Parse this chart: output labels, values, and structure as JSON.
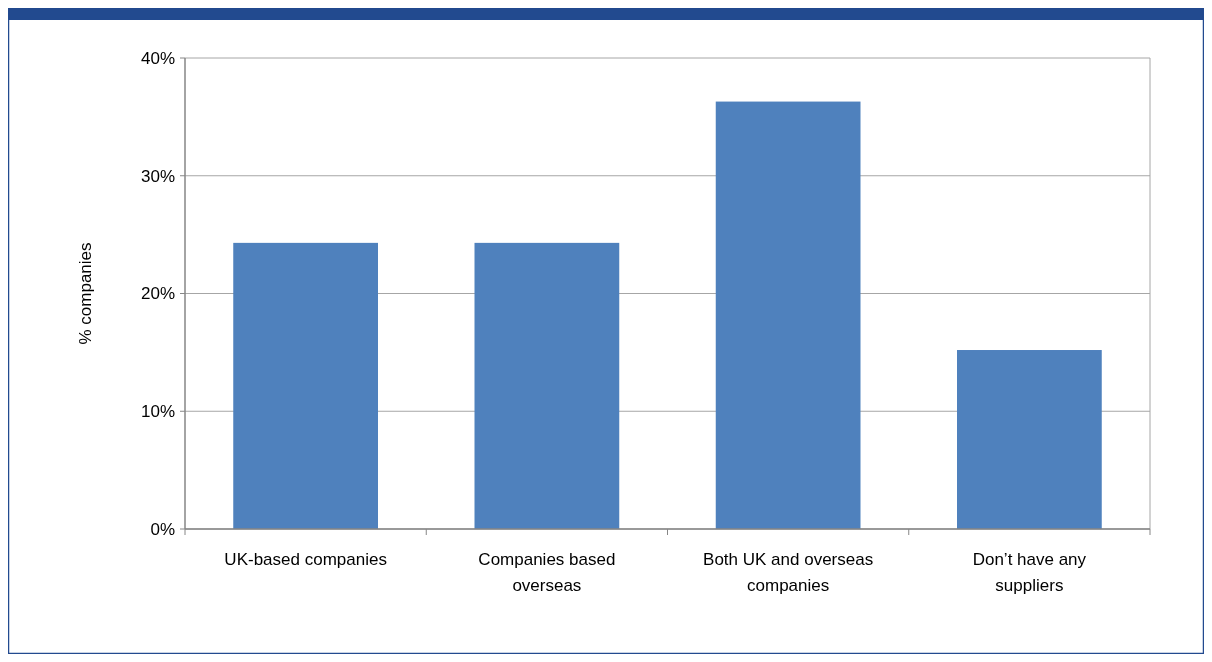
{
  "chart_data": {
    "type": "bar",
    "ylabel": "% companies",
    "categories": [
      "UK-based companies",
      "Companies based overseas",
      "Both UK and overseas companies",
      "Don’t have any suppliers"
    ],
    "values": [
      24.3,
      24.3,
      36.3,
      15.2
    ],
    "color": "#4f81bd",
    "ylim": [
      0,
      40
    ],
    "yticks": [
      {
        "value": 0,
        "label": "0%"
      },
      {
        "value": 10,
        "label": "10%"
      },
      {
        "value": 20,
        "label": "20%"
      },
      {
        "value": 30,
        "label": "30%"
      },
      {
        "value": 40,
        "label": "40%"
      }
    ],
    "grid": "y"
  }
}
